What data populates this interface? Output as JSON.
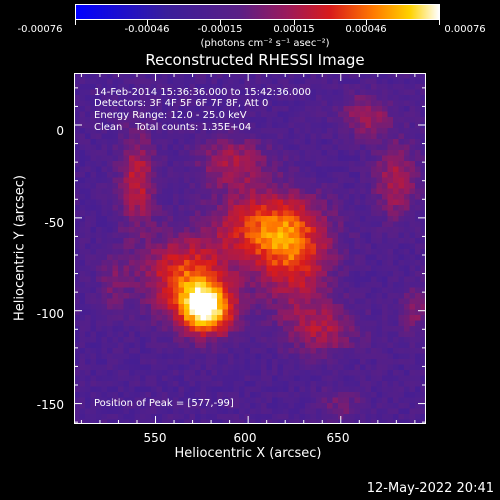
{
  "colorbar": {
    "ticks": [
      "-0.00076",
      "-0.00046",
      "-0.00015",
      "0.00015",
      "0.00046",
      "0.00076"
    ],
    "unit": "(photons cm⁻² s⁻¹ asec⁻²)"
  },
  "header": {
    "title": "Reconstructed RHESSI Image"
  },
  "info": {
    "time": "14-Feb-2014 15:36:36.000 to 15:42:36.000",
    "detectors": "Detectors: 3F 4F 5F 6F 7F 8F, Att 0",
    "energy": "Energy Range: 12.0 - 25.0 keV",
    "clean": "Clean    Total counts: 1.35E+04",
    "peak": "Position of Peak = [577,-99]"
  },
  "footer": {
    "timestamp": "12-May-2022 20:41"
  },
  "chart_data": {
    "type": "heatmap",
    "title": "Reconstructed RHESSI Image",
    "xlabel": "Heliocentric X (arcsec)",
    "ylabel": "Heliocentric Y (arcsec)",
    "xlim": [
      506,
      696
    ],
    "ylim": [
      -161,
      28
    ],
    "xticks": [
      550,
      600,
      650
    ],
    "yticks": [
      0,
      -50,
      -100,
      -150
    ],
    "colorbar_range": [
      -0.00076,
      0.00076
    ],
    "peak": [
      577,
      -99
    ],
    "sources": [
      {
        "x": 577,
        "y": -99,
        "amp": 1.0,
        "sx": 11,
        "sy": 10
      },
      {
        "x": 565,
        "y": -80,
        "amp": 0.55,
        "sx": 16,
        "sy": 14
      },
      {
        "x": 610,
        "y": -55,
        "amp": 0.6,
        "sx": 20,
        "sy": 14
      },
      {
        "x": 625,
        "y": -75,
        "amp": 0.45,
        "sx": 14,
        "sy": 18
      },
      {
        "x": 540,
        "y": -30,
        "amp": 0.45,
        "sx": 7,
        "sy": 18
      },
      {
        "x": 592,
        "y": -20,
        "amp": 0.35,
        "sx": 14,
        "sy": 10
      },
      {
        "x": 680,
        "y": -30,
        "amp": 0.4,
        "sx": 8,
        "sy": 14
      },
      {
        "x": 663,
        "y": 5,
        "amp": 0.35,
        "sx": 10,
        "sy": 8
      },
      {
        "x": 640,
        "y": -110,
        "amp": 0.35,
        "sx": 14,
        "sy": 10
      },
      {
        "x": 690,
        "y": -100,
        "amp": 0.25,
        "sx": 6,
        "sy": 10
      },
      {
        "x": 528,
        "y": -85,
        "amp": 0.2,
        "sx": 6,
        "sy": 12
      },
      {
        "x": 650,
        "y": -150,
        "amp": 0.2,
        "sx": 8,
        "sy": 6
      }
    ],
    "background_level": -0.25,
    "colormap": [
      "#0000ff",
      "#3a1e9a",
      "#5a1f86",
      "#9a1a5c",
      "#d81b1b",
      "#ff7a00",
      "#ffd200",
      "#ffffff"
    ]
  }
}
